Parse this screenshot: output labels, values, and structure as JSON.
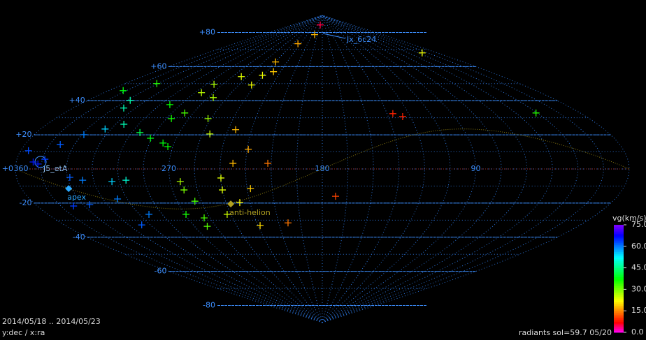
{
  "chart_data": {
    "type": "scatter",
    "projection": "sinusoidal",
    "xlim": [
      360,
      0
    ],
    "ylim": [
      -90,
      90
    ],
    "xticks": [
      360,
      270,
      180,
      90
    ],
    "yticks": [
      {
        "value": 80,
        "label": "+80"
      },
      {
        "value": 60,
        "label": "+60"
      },
      {
        "value": 40,
        "label": "+40"
      },
      {
        "value": 20,
        "label": "+20"
      },
      {
        "value": 0,
        "label": "+0"
      },
      -20,
      -40,
      -60,
      -80
    ],
    "x": [
      192.6,
      203,
      230,
      23.7,
      239.8,
      232.6,
      241,
      261,
      243.5,
      278,
      279.7,
      331,
      347.8,
      327.5,
      323.4,
      309.7,
      318.8,
      328.9,
      338.6,
      355.4,
      347,
      350,
      343.5,
      328.6,
      321.5,
      304.4,
      295.9,
      337,
      326,
      306,
      293.7,
      306,
      263,
      264,
      259,
      269.4,
      259,
      261,
      239.7,
      240,
      242.4,
      231.4,
      223,
      232.5,
      212,
      224.3,
      235.2,
      223.6,
      203.6,
      171.9,
      131,
      125.2,
      30.9,
      293,
      276,
      281.7,
      294.8,
      286,
      273,
      257,
      250.4,
      265.8,
      276.8
    ],
    "y": [
      84.4,
      78.7,
      73.4,
      68,
      62.7,
      57,
      54.9,
      54.1,
      49.2,
      49.6,
      44.7,
      50,
      45.9,
      40.2,
      35.7,
      26.2,
      23.4,
      20.1,
      14.3,
      10.7,
      2.9,
      4.1,
      5.7,
      -4.9,
      -6.6,
      -7.4,
      -6.6,
      -21.7,
      -20.9,
      -17.6,
      -26.6,
      -32.8,
      -12.3,
      -7.4,
      -18.9,
      -26.6,
      -28.7,
      -33.6,
      -5.3,
      -12.3,
      -26.6,
      -19.7,
      -11.5,
      3.3,
      3.3,
      11.5,
      23,
      -33.2,
      -31.6,
      -16,
      32.4,
      30.7,
      32.8,
      37.7,
      32.8,
      29.5,
      21.3,
      18,
      13.1,
      29.5,
      20.5,
      41.8,
      15.2
    ],
    "vg": [
      5,
      18,
      17,
      23,
      18,
      19,
      23,
      24,
      23,
      27,
      26,
      35,
      38,
      47,
      48,
      48,
      55,
      60,
      62,
      63,
      66,
      66,
      64,
      62,
      60,
      55,
      50,
      64,
      62,
      60,
      60,
      62,
      30,
      27,
      33,
      36,
      33,
      32,
      24,
      24,
      25,
      22,
      19,
      18,
      14,
      17,
      18,
      20,
      14,
      11,
      9,
      9,
      35,
      37,
      33,
      36,
      42,
      38,
      37,
      28,
      25,
      27,
      38
    ],
    "points": [
      {
        "label": "apex",
        "x": 331.8,
        "y": -11.5
      },
      {
        "label": "anti-helion",
        "x": 237.3,
        "y": -20.5
      }
    ],
    "annotations": [
      "J5_etA",
      "Jx_6c24"
    ],
    "colorbar": {
      "title": "vg(km/s)",
      "lim": [
        0,
        75
      ],
      "ticks": [
        {
          "value": 75,
          "label": "75.0"
        },
        {
          "value": 60,
          "label": "60.0"
        },
        {
          "value": 45,
          "label": "45.0"
        },
        {
          "value": 30,
          "label": "30.0"
        },
        {
          "value": 15,
          "label": "15.0"
        },
        {
          "value": 0,
          "label": "0.0"
        }
      ]
    },
    "period": "2014/05/18 .. 2014/05/23",
    "axes_note": "y:dec / x:ra",
    "footer": "radiants sol=59.7 05/20"
  }
}
